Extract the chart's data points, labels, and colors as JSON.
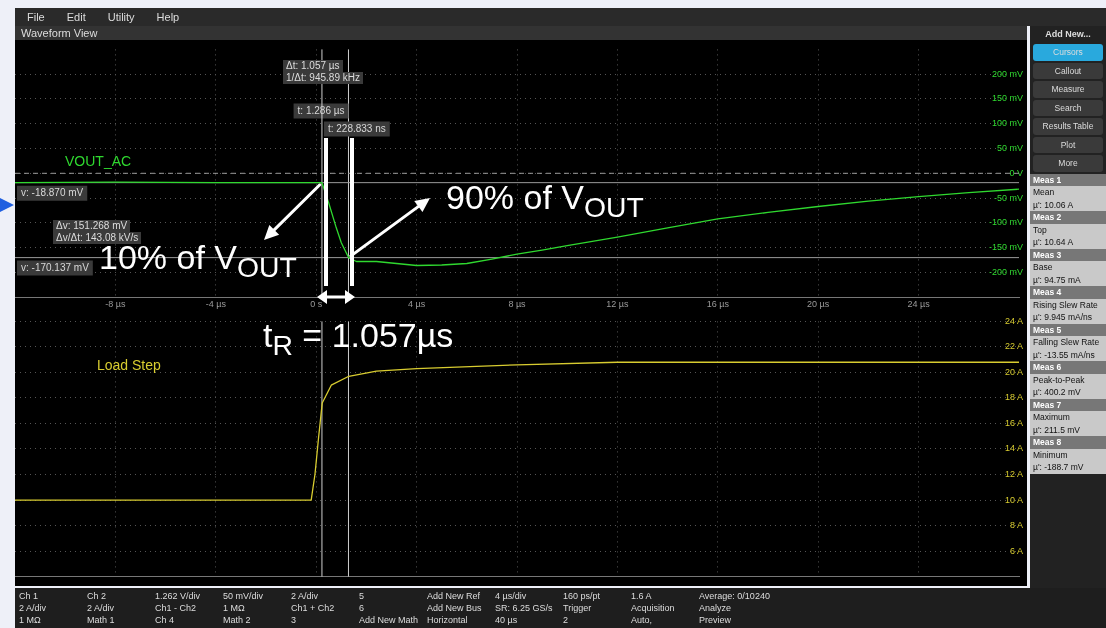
{
  "chart_data": [
    {
      "type": "line",
      "title": "Waveform View",
      "xlim": [
        -12,
        28
      ],
      "xticks": [
        {
          "value": -8,
          "label": "-8 µs"
        },
        {
          "value": -4,
          "label": "-4 µs"
        },
        {
          "value": 0,
          "label": "0 s"
        },
        {
          "value": 4,
          "label": "4 µs"
        },
        {
          "value": 8,
          "label": "8 µs"
        },
        {
          "value": 12,
          "label": "12 µs"
        },
        {
          "value": 16,
          "label": "16 µs"
        },
        {
          "value": 20,
          "label": "20 µs"
        },
        {
          "value": 24,
          "label": "24 µs"
        }
      ],
      "ylim": [
        -250,
        250
      ],
      "yticks": [
        {
          "value": 200,
          "label": "200 mV"
        },
        {
          "value": 150,
          "label": "150 mV"
        },
        {
          "value": 100,
          "label": "100 mV"
        },
        {
          "value": 50,
          "label": "50 mV"
        },
        {
          "value": 0,
          "label": "0 V"
        },
        {
          "value": -50,
          "label": "-50 mV"
        },
        {
          "value": -100,
          "label": "-100 mV"
        },
        {
          "value": -150,
          "label": "-150 mV"
        },
        {
          "value": -200,
          "label": "-200 mV"
        }
      ],
      "grid": true,
      "series": [
        {
          "name": "VOUT_AC",
          "color": "#2fd82f",
          "x": [
            -12,
            -8,
            -4,
            0,
            0.23,
            0.5,
            0.8,
            1.0,
            1.29,
            1.6,
            2.4,
            3.2,
            4,
            5,
            6,
            7,
            8,
            9,
            10,
            12,
            14,
            16,
            18,
            20,
            22,
            24,
            26,
            28
          ],
          "values": [
            -19,
            -18,
            -19,
            -19,
            -19,
            -60,
            -110,
            -140,
            -170,
            -178,
            -178,
            -182,
            -186,
            -185,
            -182,
            -173,
            -163,
            -155,
            -146,
            -129,
            -110,
            -92,
            -79,
            -67,
            -56,
            -47,
            -39,
            -32
          ]
        }
      ],
      "ref_lines": [
        {
          "axis": "x",
          "value": 1.286,
          "label": "t: 1.286 µs",
          "color": "#cfcfcf"
        },
        {
          "axis": "x",
          "value": 0.228833,
          "label": "t: 228.833 ns",
          "color": "#cfcfcf"
        },
        {
          "axis": "y",
          "value": -18.87,
          "label": "v: -18.870 mV",
          "color": "#9a9a9a"
        },
        {
          "axis": "y",
          "value": -170.137,
          "label": "v: -170.137 mV",
          "color": "#9a9a9a"
        },
        {
          "axis": "y",
          "value": 0,
          "color": "#9a9a9a",
          "line_style": "dashed"
        }
      ],
      "annotations": [
        "Δt: 1.057 µs",
        "1/Δt: 945.89 kHz",
        "Δv: 151.268 mV",
        "Δv/Δt: 143.08 kV/s",
        {
          "text": "10% of V$_{OUT}$",
          "x": 0.228833,
          "y": -18.87
        },
        {
          "text": "90% of V$_{OUT}$",
          "x": 1.286,
          "y": -170.137
        }
      ]
    },
    {
      "type": "line",
      "xlim": [
        -12,
        28
      ],
      "xticks": [
        -8,
        -4,
        0,
        4,
        8,
        12,
        16,
        20,
        24
      ],
      "ylim": [
        4,
        24
      ],
      "yticks": [
        {
          "value": 24,
          "label": "24 A"
        },
        {
          "value": 22,
          "label": "22 A"
        },
        {
          "value": 20,
          "label": "20 A"
        },
        {
          "value": 18,
          "label": "18 A"
        },
        {
          "value": 16,
          "label": "16 A"
        },
        {
          "value": 14,
          "label": "14 A"
        },
        {
          "value": 12,
          "label": "12 A"
        },
        {
          "value": 10,
          "label": "10 A"
        },
        {
          "value": 8,
          "label": "8 A"
        },
        {
          "value": 6,
          "label": "6 A"
        }
      ],
      "tick_labels": "y",
      "grid": true,
      "series": [
        {
          "name": "Load Step",
          "color": "#d8cc30",
          "x": [
            -12,
            -4,
            -0.2,
            -0.05,
            0.1,
            0.24,
            0.6,
            1.3,
            2.4,
            4,
            8,
            12,
            20,
            28
          ],
          "values": [
            10,
            10,
            10,
            12,
            15,
            17.6,
            19,
            19.7,
            20.1,
            20.3,
            20.6,
            20.8,
            20.8,
            20.8
          ]
        }
      ],
      "ref_lines": [
        {
          "axis": "x",
          "value": 1.286,
          "color": "#cfcfcf"
        },
        {
          "axis": "x",
          "value": 0.228833,
          "color": "#cfcfcf"
        }
      ],
      "annotations": [
        "t$_{R}$ = 1.057µs"
      ]
    },
    {
      "type": "other",
      "annotations": [
        "File",
        "Edit",
        "Utility",
        "Help"
      ]
    },
    {
      "type": "other",
      "title": "Add New...",
      "annotations": [
        "Cursors",
        "Callout",
        "Measure",
        "Search",
        "Results Table",
        "Plot",
        "More",
        "Meas 1",
        "Mean",
        "µ': 10.06 A",
        "Meas 2",
        "Top",
        "µ': 10.64 A",
        "Meas 3",
        "Base",
        "µ': 94.75 mA",
        "Meas 4",
        "Rising Slew Rate",
        "µ': 9.945 mA/ns",
        "Meas 5",
        "Falling Slew Rate",
        "µ': -13.55 mA/ns",
        "Meas 6",
        "Peak-to-Peak",
        "µ': 400.2 mV",
        "Meas 7",
        "Maximum",
        "µ': 211.5 mV",
        "Meas 8",
        "Minimum",
        "µ': -188.7 mV"
      ]
    },
    {
      "type": "other",
      "annotations": [
        "Ch 1",
        "2 A/div",
        "1 MΩ",
        "Ch 2",
        "2 A/div",
        "Math 1",
        "1.262 V/div",
        "Ch1 - Ch2",
        "Ch 4",
        "50 mV/div",
        "1 MΩ",
        "Math 2",
        "2 A/div",
        "Ch1 + Ch2",
        "3",
        "5",
        "6",
        "Add New Math",
        "Add New Ref",
        "Add New Bus",
        "Horizontal",
        "4 µs/div",
        "SR: 6.25 GS/s",
        "40 µs",
        "160 ps/pt",
        "Trigger",
        "2",
        "1.6 A",
        "Acquisition",
        "Auto,",
        "Average: 0/10240",
        "Analyze",
        "Preview"
      ]
    }
  ]
}
